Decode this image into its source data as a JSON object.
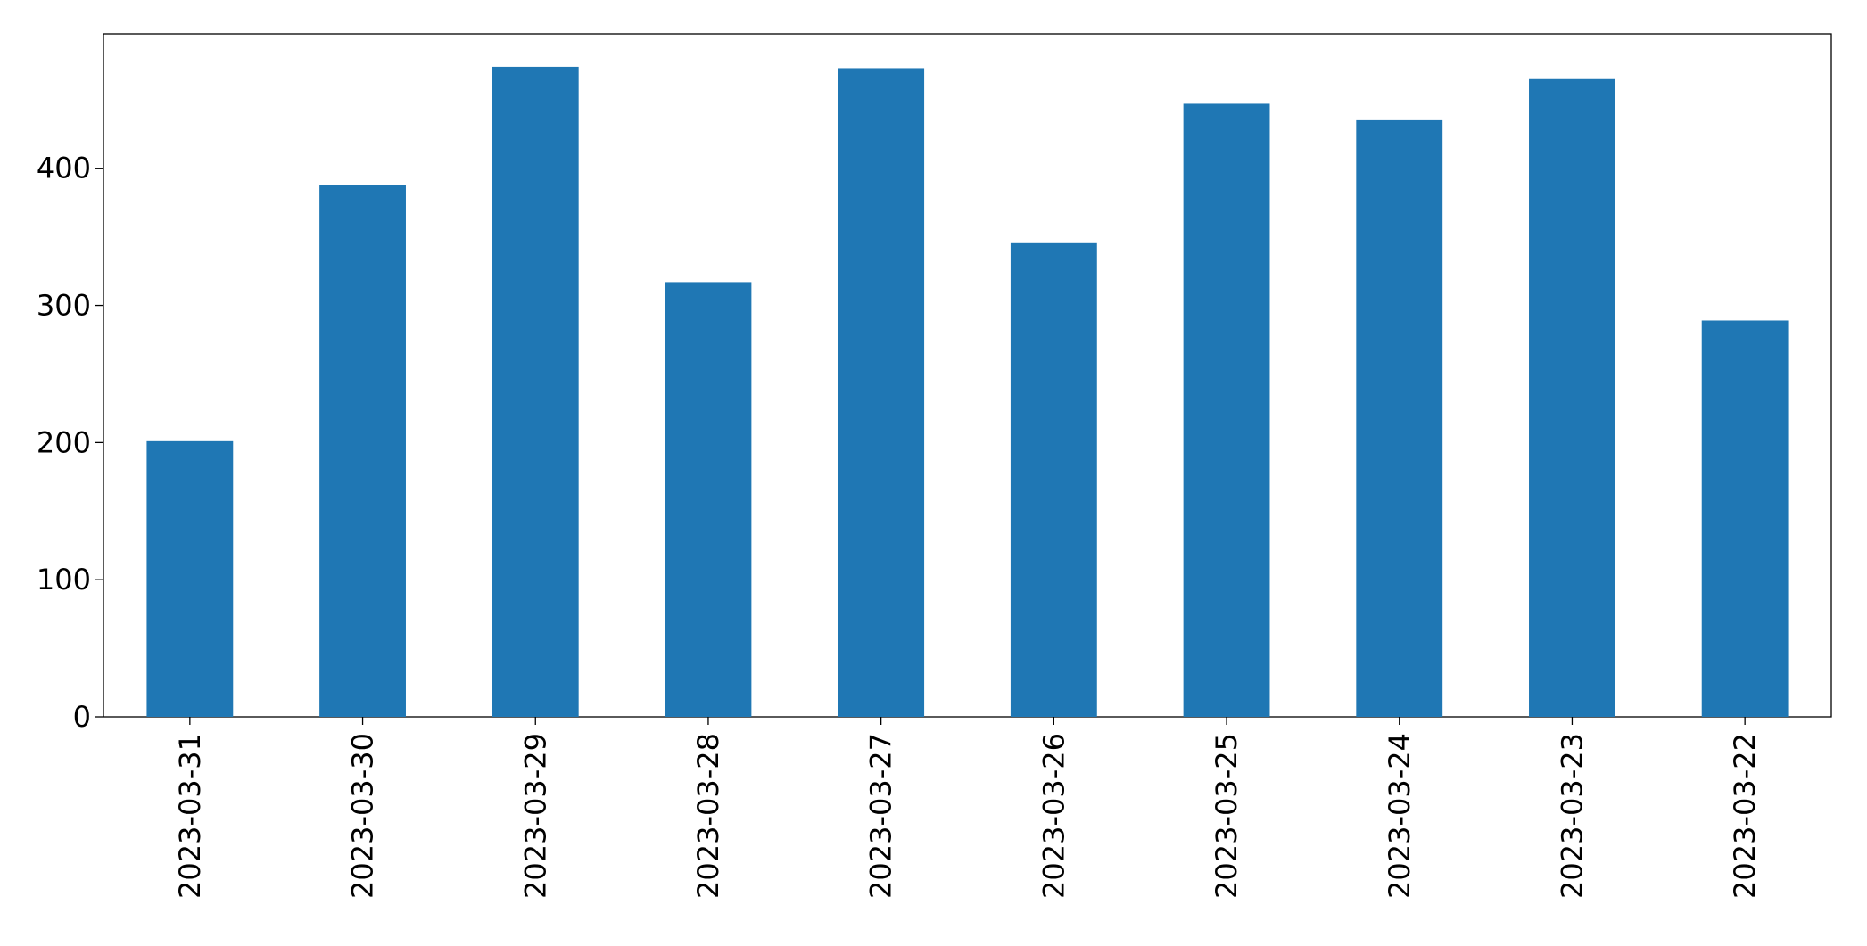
{
  "chart_data": {
    "type": "bar",
    "categories": [
      "2023-03-31",
      "2023-03-30",
      "2023-03-29",
      "2023-03-28",
      "2023-03-27",
      "2023-03-26",
      "2023-03-25",
      "2023-03-24",
      "2023-03-23",
      "2023-03-22"
    ],
    "values": [
      201,
      388,
      474,
      317,
      473,
      346,
      447,
      435,
      465,
      289
    ],
    "color": "#1f77b4",
    "ylim": [
      0,
      498
    ],
    "yticks": [
      0,
      100,
      200,
      300,
      400
    ],
    "grid": false
  }
}
